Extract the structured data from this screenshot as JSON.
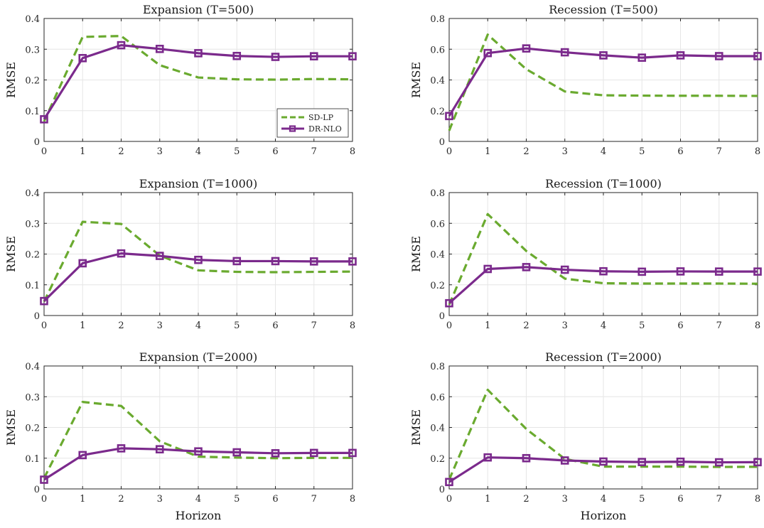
{
  "chart_data": [
    {
      "type": "line",
      "title": "Expansion (T=500)",
      "ylabel": "RMSE",
      "xlabel": "",
      "x": [
        0,
        1,
        2,
        3,
        4,
        5,
        6,
        7,
        8
      ],
      "xlim": [
        0,
        8
      ],
      "ylim": [
        0,
        0.4
      ],
      "yticks": [
        0,
        0.1,
        0.2,
        0.3,
        0.4
      ],
      "yticklabels": [
        "0",
        "0.1",
        "0.2",
        "0.3",
        "0.4"
      ],
      "grid": true,
      "legend": "bottom-right",
      "series": [
        {
          "name": "SD-LP",
          "color": "#6aaa2f",
          "style": "dashed",
          "values": [
            0.065,
            0.34,
            0.343,
            0.248,
            0.208,
            0.202,
            0.201,
            0.203,
            0.202
          ]
        },
        {
          "name": "DR-NLO",
          "color": "#7b2a8c",
          "style": "solid-square",
          "values": [
            0.072,
            0.271,
            0.313,
            0.301,
            0.287,
            0.278,
            0.275,
            0.277,
            0.277
          ]
        }
      ]
    },
    {
      "type": "line",
      "title": "Recession (T=500)",
      "ylabel": "RMSE",
      "xlabel": "",
      "x": [
        0,
        1,
        2,
        3,
        4,
        5,
        6,
        7,
        8
      ],
      "xlim": [
        0,
        8
      ],
      "ylim": [
        0,
        0.8
      ],
      "yticks": [
        0,
        0.2,
        0.4,
        0.6,
        0.8
      ],
      "yticklabels": [
        "0",
        "0.2",
        "0.4",
        "0.6",
        "0.8"
      ],
      "grid": true,
      "series": [
        {
          "name": "SD-LP",
          "color": "#6aaa2f",
          "style": "dashed",
          "values": [
            0.07,
            0.695,
            0.47,
            0.325,
            0.3,
            0.298,
            0.297,
            0.297,
            0.296
          ]
        },
        {
          "name": "DR-NLO",
          "color": "#7b2a8c",
          "style": "solid-square",
          "values": [
            0.165,
            0.575,
            0.605,
            0.58,
            0.56,
            0.545,
            0.56,
            0.555,
            0.555
          ]
        }
      ]
    },
    {
      "type": "line",
      "title": "Expansion (T=1000)",
      "ylabel": "RMSE",
      "xlabel": "",
      "x": [
        0,
        1,
        2,
        3,
        4,
        5,
        6,
        7,
        8
      ],
      "xlim": [
        0,
        8
      ],
      "ylim": [
        0,
        0.4
      ],
      "yticks": [
        0,
        0.1,
        0.2,
        0.3,
        0.4
      ],
      "yticklabels": [
        "0",
        "0.1",
        "0.2",
        "0.3",
        "0.4"
      ],
      "grid": true,
      "series": [
        {
          "name": "SD-LP",
          "color": "#6aaa2f",
          "style": "dashed",
          "values": [
            0.045,
            0.305,
            0.298,
            0.195,
            0.147,
            0.142,
            0.141,
            0.142,
            0.143
          ]
        },
        {
          "name": "DR-NLO",
          "color": "#7b2a8c",
          "style": "solid-square",
          "values": [
            0.047,
            0.17,
            0.202,
            0.194,
            0.181,
            0.177,
            0.177,
            0.176,
            0.176
          ]
        }
      ]
    },
    {
      "type": "line",
      "title": "Recession (T=1000)",
      "ylabel": "RMSE",
      "xlabel": "",
      "x": [
        0,
        1,
        2,
        3,
        4,
        5,
        6,
        7,
        8
      ],
      "xlim": [
        0,
        8
      ],
      "ylim": [
        0,
        0.8
      ],
      "yticks": [
        0,
        0.2,
        0.4,
        0.6,
        0.8
      ],
      "yticklabels": [
        "0",
        "0.2",
        "0.4",
        "0.6",
        "0.8"
      ],
      "grid": true,
      "series": [
        {
          "name": "SD-LP",
          "color": "#6aaa2f",
          "style": "dashed",
          "values": [
            0.07,
            0.66,
            0.42,
            0.24,
            0.21,
            0.208,
            0.208,
            0.208,
            0.207
          ]
        },
        {
          "name": "DR-NLO",
          "color": "#7b2a8c",
          "style": "solid-square",
          "values": [
            0.08,
            0.303,
            0.315,
            0.298,
            0.288,
            0.285,
            0.287,
            0.286,
            0.286
          ]
        }
      ]
    },
    {
      "type": "line",
      "title": "Expansion (T=2000)",
      "ylabel": "RMSE",
      "xlabel": "Horizon",
      "x": [
        0,
        1,
        2,
        3,
        4,
        5,
        6,
        7,
        8
      ],
      "xlim": [
        0,
        8
      ],
      "ylim": [
        0,
        0.4
      ],
      "yticks": [
        0,
        0.1,
        0.2,
        0.3,
        0.4
      ],
      "yticklabels": [
        "0",
        "0.1",
        "0.2",
        "0.3",
        "0.4"
      ],
      "grid": true,
      "series": [
        {
          "name": "SD-LP",
          "color": "#6aaa2f",
          "style": "dashed",
          "values": [
            0.035,
            0.283,
            0.27,
            0.155,
            0.105,
            0.102,
            0.1,
            0.101,
            0.101
          ]
        },
        {
          "name": "DR-NLO",
          "color": "#7b2a8c",
          "style": "solid-square",
          "values": [
            0.03,
            0.11,
            0.132,
            0.129,
            0.122,
            0.119,
            0.116,
            0.117,
            0.117
          ]
        }
      ]
    },
    {
      "type": "line",
      "title": "Recession (T=2000)",
      "ylabel": "RMSE",
      "xlabel": "Horizon",
      "x": [
        0,
        1,
        2,
        3,
        4,
        5,
        6,
        7,
        8
      ],
      "xlim": [
        0,
        8
      ],
      "ylim": [
        0,
        0.8
      ],
      "yticks": [
        0,
        0.2,
        0.4,
        0.6,
        0.8
      ],
      "yticklabels": [
        "0",
        "0.2",
        "0.4",
        "0.6",
        "0.8"
      ],
      "grid": true,
      "series": [
        {
          "name": "SD-LP",
          "color": "#6aaa2f",
          "style": "dashed",
          "values": [
            0.06,
            0.645,
            0.39,
            0.195,
            0.145,
            0.145,
            0.145,
            0.143,
            0.144
          ]
        },
        {
          "name": "DR-NLO",
          "color": "#7b2a8c",
          "style": "solid-square",
          "values": [
            0.045,
            0.205,
            0.2,
            0.185,
            0.178,
            0.175,
            0.177,
            0.173,
            0.174
          ]
        }
      ]
    }
  ]
}
